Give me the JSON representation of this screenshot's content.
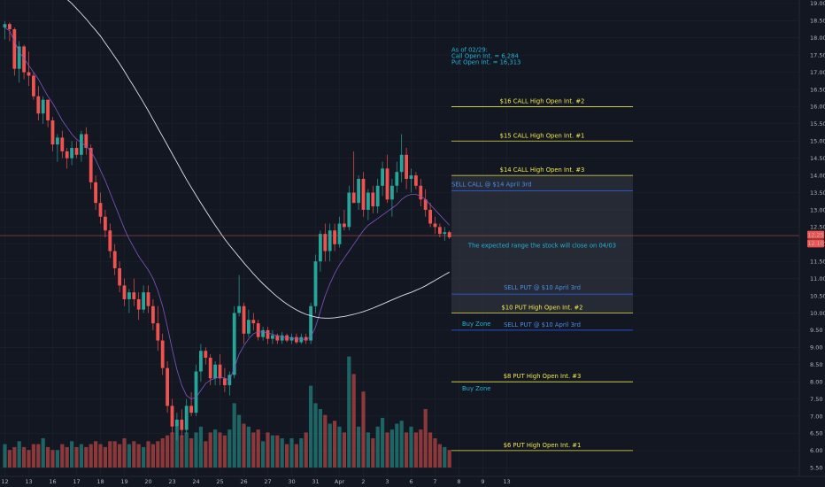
{
  "chart_data": {
    "type": "candlestick",
    "price_scale": {
      "ylim": [
        5.25,
        19.1
      ],
      "ticks": [
        "5.50",
        "6.00",
        "6.50",
        "7.00",
        "7.50",
        "8.00",
        "8.50",
        "9.00",
        "9.50",
        "10.00",
        "10.50",
        "11.00",
        "11.50",
        "12.00",
        "12.50",
        "13.00",
        "13.50",
        "14.00",
        "14.50",
        "15.00",
        "15.50",
        "16.00",
        "16.50",
        "17.00",
        "17.50",
        "18.00",
        "18.50",
        "19.00"
      ],
      "last_price_labels": [
        {
          "value": 12.25,
          "text": "12.25"
        },
        {
          "value": 12.1,
          "text": "12.10"
        }
      ]
    },
    "time_axis": {
      "ticks": [
        {
          "bar": 0,
          "label": "12"
        },
        {
          "bar": 5,
          "label": "13"
        },
        {
          "bar": 10,
          "label": "16"
        },
        {
          "bar": 15,
          "label": "17"
        },
        {
          "bar": 20,
          "label": "18"
        },
        {
          "bar": 25,
          "label": "19"
        },
        {
          "bar": 30,
          "label": "20"
        },
        {
          "bar": 35,
          "label": "23"
        },
        {
          "bar": 40,
          "label": "24"
        },
        {
          "bar": 45,
          "label": "25"
        },
        {
          "bar": 50,
          "label": "26"
        },
        {
          "bar": 55,
          "label": "27"
        },
        {
          "bar": 60,
          "label": "30"
        },
        {
          "bar": 65,
          "label": "31"
        },
        {
          "bar": 70,
          "label": "Apr"
        },
        {
          "bar": 75,
          "label": "2"
        },
        {
          "bar": 80,
          "label": "3"
        },
        {
          "bar": 85,
          "label": "6"
        },
        {
          "bar": 90,
          "label": "7"
        },
        {
          "bar": 95,
          "label": "8"
        },
        {
          "bar": 100,
          "label": "9"
        },
        {
          "bar": 105,
          "label": "13"
        }
      ]
    },
    "candles": [
      [
        18.3,
        18.48,
        17.95,
        18.4
      ],
      [
        18.4,
        18.45,
        17.9,
        18.25
      ],
      [
        18.25,
        18.3,
        16.9,
        17.1
      ],
      [
        17.1,
        17.9,
        16.7,
        17.75
      ],
      [
        17.75,
        17.8,
        16.8,
        17.0
      ],
      [
        17.0,
        17.6,
        16.6,
        16.9
      ],
      [
        16.9,
        17.0,
        16.2,
        16.3
      ],
      [
        16.3,
        16.6,
        15.6,
        15.8
      ],
      [
        15.8,
        16.3,
        15.5,
        16.2
      ],
      [
        16.2,
        16.2,
        15.4,
        15.6
      ],
      [
        15.6,
        15.7,
        14.7,
        14.9
      ],
      [
        14.9,
        15.2,
        14.4,
        15.1
      ],
      [
        15.1,
        15.3,
        14.5,
        14.7
      ],
      [
        14.7,
        14.8,
        14.2,
        14.5
      ],
      [
        14.5,
        15.0,
        14.3,
        14.8
      ],
      [
        14.8,
        15.0,
        14.5,
        14.6
      ],
      [
        14.6,
        15.3,
        14.4,
        15.2
      ],
      [
        15.2,
        15.4,
        14.6,
        14.8
      ],
      [
        14.8,
        14.9,
        13.6,
        13.8
      ],
      [
        13.8,
        14.0,
        13.0,
        13.2
      ],
      [
        13.2,
        13.5,
        12.6,
        12.8
      ],
      [
        12.8,
        13.0,
        12.2,
        12.4
      ],
      [
        12.4,
        12.6,
        11.6,
        11.8
      ],
      [
        11.8,
        12.0,
        11.1,
        11.3
      ],
      [
        11.3,
        11.5,
        10.6,
        10.8
      ],
      [
        10.8,
        11.0,
        10.2,
        10.4
      ],
      [
        10.4,
        10.7,
        10.0,
        10.6
      ],
      [
        10.6,
        11.0,
        10.2,
        10.4
      ],
      [
        10.4,
        10.6,
        9.8,
        10.1
      ],
      [
        10.1,
        10.8,
        10.0,
        10.6
      ],
      [
        10.6,
        10.8,
        10.0,
        10.2
      ],
      [
        10.2,
        10.4,
        9.5,
        9.7
      ],
      [
        9.7,
        10.2,
        8.9,
        9.2
      ],
      [
        9.2,
        9.4,
        8.2,
        8.4
      ],
      [
        8.4,
        8.6,
        7.1,
        7.3
      ],
      [
        7.3,
        7.5,
        6.5,
        6.7
      ],
      [
        6.7,
        7.1,
        6.3,
        6.9
      ],
      [
        6.9,
        7.2,
        6.4,
        6.6
      ],
      [
        6.6,
        7.5,
        6.5,
        7.3
      ],
      [
        7.3,
        7.7,
        7.0,
        7.1
      ],
      [
        7.1,
        8.5,
        7.0,
        8.3
      ],
      [
        8.3,
        9.1,
        8.0,
        8.9
      ],
      [
        8.9,
        9.0,
        8.5,
        8.7
      ],
      [
        8.7,
        8.8,
        7.9,
        8.1
      ],
      [
        8.1,
        8.6,
        7.9,
        8.5
      ],
      [
        8.5,
        8.8,
        7.9,
        8.1
      ],
      [
        8.1,
        8.4,
        7.7,
        7.9
      ],
      [
        7.9,
        8.3,
        7.6,
        8.2
      ],
      [
        8.2,
        10.2,
        8.1,
        10.0
      ],
      [
        10.0,
        11.1,
        9.9,
        10.2
      ],
      [
        10.2,
        10.3,
        9.1,
        9.4
      ],
      [
        9.4,
        10.1,
        9.3,
        9.8
      ],
      [
        9.8,
        10.0,
        9.5,
        9.7
      ],
      [
        9.7,
        9.8,
        9.2,
        9.3
      ],
      [
        9.3,
        9.6,
        9.2,
        9.5
      ],
      [
        9.5,
        9.6,
        9.1,
        9.25
      ],
      [
        9.25,
        9.5,
        9.1,
        9.35
      ],
      [
        9.35,
        9.4,
        9.1,
        9.2
      ],
      [
        9.2,
        9.45,
        9.1,
        9.35
      ],
      [
        9.35,
        9.4,
        9.15,
        9.2
      ],
      [
        9.2,
        9.4,
        9.1,
        9.3
      ],
      [
        9.3,
        9.4,
        9.1,
        9.15
      ],
      [
        9.15,
        9.4,
        9.1,
        9.3
      ],
      [
        9.3,
        9.4,
        9.1,
        9.2
      ],
      [
        9.2,
        10.3,
        9.1,
        10.2
      ],
      [
        10.2,
        11.7,
        10.0,
        11.5
      ],
      [
        11.5,
        12.4,
        11.2,
        12.3
      ],
      [
        12.3,
        12.6,
        11.5,
        11.8
      ],
      [
        11.8,
        12.6,
        11.5,
        12.4
      ],
      [
        12.4,
        12.6,
        11.8,
        12.0
      ],
      [
        12.0,
        12.8,
        11.9,
        12.6
      ],
      [
        12.6,
        13.0,
        12.4,
        12.5
      ],
      [
        12.5,
        13.7,
        12.4,
        13.5
      ],
      [
        13.5,
        14.7,
        13.2,
        13.2
      ],
      [
        13.2,
        14.0,
        13.0,
        13.9
      ],
      [
        13.9,
        14.1,
        12.8,
        13.0
      ],
      [
        13.0,
        13.6,
        12.7,
        13.5
      ],
      [
        13.5,
        13.7,
        12.9,
        13.1
      ],
      [
        13.1,
        13.9,
        12.9,
        13.7
      ],
      [
        13.7,
        14.4,
        13.4,
        14.2
      ],
      [
        14.2,
        14.6,
        13.2,
        13.3
      ],
      [
        13.3,
        13.9,
        12.8,
        13.7
      ],
      [
        13.7,
        14.4,
        13.5,
        14.1
      ],
      [
        14.1,
        15.2,
        13.8,
        14.6
      ],
      [
        14.6,
        14.8,
        13.6,
        13.9
      ],
      [
        13.9,
        14.2,
        13.5,
        14.0
      ],
      [
        14.0,
        14.1,
        13.6,
        13.7
      ],
      [
        13.7,
        13.9,
        13.1,
        13.3
      ],
      [
        13.3,
        13.6,
        12.8,
        13.0
      ],
      [
        13.0,
        13.2,
        12.5,
        12.6
      ],
      [
        12.6,
        12.8,
        12.3,
        12.5
      ],
      [
        12.5,
        12.6,
        12.2,
        12.3
      ],
      [
        12.3,
        12.5,
        12.1,
        12.35
      ],
      [
        12.35,
        12.4,
        12.15,
        12.2
      ]
    ],
    "volume": [
      0.08,
      0.06,
      0.07,
      0.09,
      0.07,
      0.06,
      0.08,
      0.08,
      0.1,
      0.07,
      0.06,
      0.06,
      0.08,
      0.07,
      0.09,
      0.07,
      0.08,
      0.07,
      0.08,
      0.09,
      0.08,
      0.07,
      0.09,
      0.09,
      0.08,
      0.1,
      0.08,
      0.09,
      0.08,
      0.07,
      0.09,
      0.08,
      0.09,
      0.1,
      0.11,
      0.12,
      0.14,
      0.11,
      0.12,
      0.1,
      0.12,
      0.14,
      0.09,
      0.12,
      0.13,
      0.12,
      0.11,
      0.13,
      0.22,
      0.18,
      0.15,
      0.14,
      0.12,
      0.13,
      0.09,
      0.12,
      0.11,
      0.11,
      0.1,
      0.08,
      0.1,
      0.08,
      0.1,
      0.12,
      0.28,
      0.22,
      0.2,
      0.18,
      0.15,
      0.16,
      0.14,
      0.12,
      0.38,
      0.32,
      0.14,
      0.26,
      0.12,
      0.1,
      0.14,
      0.17,
      0.12,
      0.13,
      0.15,
      0.16,
      0.12,
      0.14,
      0.12,
      0.13,
      0.2,
      0.12,
      0.1,
      0.08,
      0.07,
      0.06
    ],
    "indicators": [
      {
        "kind": "short_ma",
        "values": [
          18.3,
          18.2,
          17.9,
          17.6,
          17.4,
          17.2,
          17.0,
          16.8,
          16.55,
          16.3,
          16.1,
          15.85,
          15.6,
          15.4,
          15.2,
          15.05,
          14.95,
          14.85,
          14.7,
          14.45,
          14.15,
          13.85,
          13.5,
          13.15,
          12.8,
          12.45,
          12.15,
          11.9,
          11.65,
          11.45,
          11.25,
          11.0,
          10.65,
          10.2,
          9.6,
          8.95,
          8.35,
          7.9,
          7.6,
          7.5,
          7.55,
          7.75,
          7.95,
          8.05,
          8.1,
          8.15,
          8.1,
          8.05,
          8.4,
          8.8,
          9.05,
          9.25,
          9.4,
          9.45,
          9.45,
          9.42,
          9.38,
          9.34,
          9.3,
          9.28,
          9.27,
          9.25,
          9.24,
          9.23,
          9.3,
          9.6,
          10.05,
          10.5,
          10.85,
          11.15,
          11.4,
          11.6,
          11.8,
          12.0,
          12.2,
          12.4,
          12.55,
          12.65,
          12.75,
          12.85,
          12.95,
          13.05,
          13.15,
          13.3,
          13.4,
          13.45,
          13.45,
          13.4,
          13.3,
          13.15,
          13.0,
          12.85,
          12.7,
          12.55
        ]
      },
      {
        "kind": "long_ma",
        "values": [
          19.2,
          19.2,
          19.2,
          19.2,
          19.2,
          19.2,
          19.2,
          19.2,
          19.2,
          19.2,
          19.2,
          19.2,
          19.2,
          19.12,
          19.0,
          18.85,
          18.7,
          18.55,
          18.38,
          18.22,
          18.05,
          17.85,
          17.65,
          17.45,
          17.25,
          17.03,
          16.8,
          16.58,
          16.35,
          16.12,
          15.88,
          15.63,
          15.38,
          15.13,
          14.88,
          14.63,
          14.38,
          14.13,
          13.88,
          13.65,
          13.42,
          13.2,
          12.98,
          12.76,
          12.55,
          12.35,
          12.15,
          11.97,
          11.8,
          11.63,
          11.46,
          11.3,
          11.14,
          10.99,
          10.85,
          10.72,
          10.59,
          10.47,
          10.36,
          10.26,
          10.17,
          10.09,
          10.02,
          9.96,
          9.92,
          9.88,
          9.86,
          9.85,
          9.85,
          9.86,
          9.88,
          9.9,
          9.93,
          9.96,
          10.0,
          10.04,
          10.09,
          10.14,
          10.2,
          10.26,
          10.32,
          10.38,
          10.44,
          10.5,
          10.55,
          10.6,
          10.66,
          10.72,
          10.79,
          10.87,
          10.95,
          11.03,
          11.11,
          11.19
        ]
      }
    ],
    "price_lines": [
      {
        "value": 16.0,
        "text": "$16 CALL High Open Int. #2"
      },
      {
        "value": 15.0,
        "text": "$15 CALL High Open Int. #1"
      },
      {
        "value": 14.0,
        "text": "$14 CALL High Open Int. #3"
      },
      {
        "value": 10.0,
        "text": "$10 PUT High Open Int. #2"
      },
      {
        "value": 8.0,
        "text": "$8 PUT High Open Int. #3"
      },
      {
        "value": 6.0,
        "text": "$6 PUT High Open Int. #1"
      }
    ],
    "blue_lines": [
      {
        "value": 13.55,
        "text": "SELL CALL @ $14 April 3rd"
      },
      {
        "value": 10.55,
        "text": "SELL PUT @ $10 April 3rd"
      },
      {
        "value": 9.5,
        "text": "SELL PUT @ $10 April 3rd"
      }
    ],
    "range_box": {
      "top": 14.0,
      "bottom": 10.0
    },
    "range_label": {
      "text": "The expected range the stock will close on 04/03",
      "value": 11.95
    },
    "buy_zones": [
      {
        "text": "Buy Zone",
        "value": 9.68
      },
      {
        "text": "Buy Zone",
        "value": 7.8
      }
    ],
    "open_interest_note": {
      "lines": [
        "As of 02/29:",
        "Call Open Int. = 6,284",
        "Put Open Int. = 16,313"
      ],
      "values": [
        17.65,
        17.47,
        17.29
      ]
    },
    "current_price_line": 12.25,
    "colors": {
      "background": "#131722",
      "grid": "#1e222d",
      "up": "#26a69a",
      "down": "#ef5350",
      "up_volume": "#26a69a",
      "down_volume": "#ef5350",
      "short_ma": "#7e57c2",
      "long_ma": "#e0e3eb",
      "price_line": "#e8e24a",
      "price_text": "#f2e94e",
      "blue_line": "#2962ff",
      "blue_text": "#4c8be8",
      "cyan_text": "#22b3d6",
      "current_price": "#ef5350",
      "box_fill": "#363a45",
      "axis_text": "#b2b5be"
    }
  }
}
